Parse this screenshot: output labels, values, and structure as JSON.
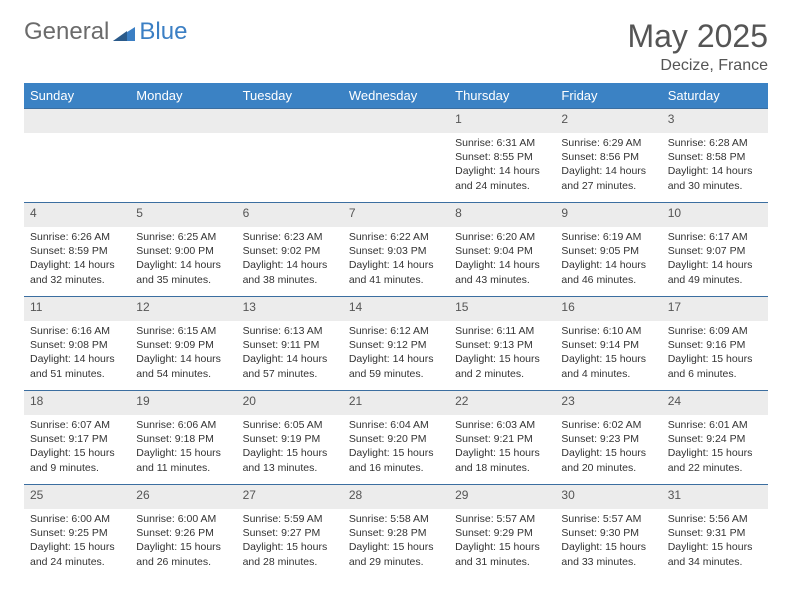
{
  "brand": {
    "part1": "General",
    "part2": "Blue"
  },
  "title": "May 2025",
  "location": "Decize, France",
  "colors": {
    "header_bg": "#3b82c4",
    "header_text": "#ffffff",
    "num_row_bg": "#ececec",
    "border": "#3b6ea0",
    "logo_gray": "#6b6b6b",
    "logo_blue": "#3b7fc4"
  },
  "dayNames": [
    "Sunday",
    "Monday",
    "Tuesday",
    "Wednesday",
    "Thursday",
    "Friday",
    "Saturday"
  ],
  "weeks": [
    {
      "nums": [
        "",
        "",
        "",
        "",
        "1",
        "2",
        "3"
      ],
      "cells": [
        "",
        "",
        "",
        "",
        "Sunrise: 6:31 AM\nSunset: 8:55 PM\nDaylight: 14 hours and 24 minutes.",
        "Sunrise: 6:29 AM\nSunset: 8:56 PM\nDaylight: 14 hours and 27 minutes.",
        "Sunrise: 6:28 AM\nSunset: 8:58 PM\nDaylight: 14 hours and 30 minutes."
      ]
    },
    {
      "nums": [
        "4",
        "5",
        "6",
        "7",
        "8",
        "9",
        "10"
      ],
      "cells": [
        "Sunrise: 6:26 AM\nSunset: 8:59 PM\nDaylight: 14 hours and 32 minutes.",
        "Sunrise: 6:25 AM\nSunset: 9:00 PM\nDaylight: 14 hours and 35 minutes.",
        "Sunrise: 6:23 AM\nSunset: 9:02 PM\nDaylight: 14 hours and 38 minutes.",
        "Sunrise: 6:22 AM\nSunset: 9:03 PM\nDaylight: 14 hours and 41 minutes.",
        "Sunrise: 6:20 AM\nSunset: 9:04 PM\nDaylight: 14 hours and 43 minutes.",
        "Sunrise: 6:19 AM\nSunset: 9:05 PM\nDaylight: 14 hours and 46 minutes.",
        "Sunrise: 6:17 AM\nSunset: 9:07 PM\nDaylight: 14 hours and 49 minutes."
      ]
    },
    {
      "nums": [
        "11",
        "12",
        "13",
        "14",
        "15",
        "16",
        "17"
      ],
      "cells": [
        "Sunrise: 6:16 AM\nSunset: 9:08 PM\nDaylight: 14 hours and 51 minutes.",
        "Sunrise: 6:15 AM\nSunset: 9:09 PM\nDaylight: 14 hours and 54 minutes.",
        "Sunrise: 6:13 AM\nSunset: 9:11 PM\nDaylight: 14 hours and 57 minutes.",
        "Sunrise: 6:12 AM\nSunset: 9:12 PM\nDaylight: 14 hours and 59 minutes.",
        "Sunrise: 6:11 AM\nSunset: 9:13 PM\nDaylight: 15 hours and 2 minutes.",
        "Sunrise: 6:10 AM\nSunset: 9:14 PM\nDaylight: 15 hours and 4 minutes.",
        "Sunrise: 6:09 AM\nSunset: 9:16 PM\nDaylight: 15 hours and 6 minutes."
      ]
    },
    {
      "nums": [
        "18",
        "19",
        "20",
        "21",
        "22",
        "23",
        "24"
      ],
      "cells": [
        "Sunrise: 6:07 AM\nSunset: 9:17 PM\nDaylight: 15 hours and 9 minutes.",
        "Sunrise: 6:06 AM\nSunset: 9:18 PM\nDaylight: 15 hours and 11 minutes.",
        "Sunrise: 6:05 AM\nSunset: 9:19 PM\nDaylight: 15 hours and 13 minutes.",
        "Sunrise: 6:04 AM\nSunset: 9:20 PM\nDaylight: 15 hours and 16 minutes.",
        "Sunrise: 6:03 AM\nSunset: 9:21 PM\nDaylight: 15 hours and 18 minutes.",
        "Sunrise: 6:02 AM\nSunset: 9:23 PM\nDaylight: 15 hours and 20 minutes.",
        "Sunrise: 6:01 AM\nSunset: 9:24 PM\nDaylight: 15 hours and 22 minutes."
      ]
    },
    {
      "nums": [
        "25",
        "26",
        "27",
        "28",
        "29",
        "30",
        "31"
      ],
      "cells": [
        "Sunrise: 6:00 AM\nSunset: 9:25 PM\nDaylight: 15 hours and 24 minutes.",
        "Sunrise: 6:00 AM\nSunset: 9:26 PM\nDaylight: 15 hours and 26 minutes.",
        "Sunrise: 5:59 AM\nSunset: 9:27 PM\nDaylight: 15 hours and 28 minutes.",
        "Sunrise: 5:58 AM\nSunset: 9:28 PM\nDaylight: 15 hours and 29 minutes.",
        "Sunrise: 5:57 AM\nSunset: 9:29 PM\nDaylight: 15 hours and 31 minutes.",
        "Sunrise: 5:57 AM\nSunset: 9:30 PM\nDaylight: 15 hours and 33 minutes.",
        "Sunrise: 5:56 AM\nSunset: 9:31 PM\nDaylight: 15 hours and 34 minutes."
      ]
    }
  ]
}
